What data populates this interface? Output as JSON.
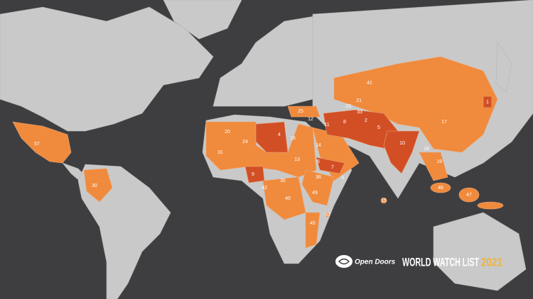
{
  "map": {
    "labels": [
      "57",
      "30",
      "1",
      "41",
      "21",
      "17",
      "11",
      "8",
      "2",
      "5",
      "10",
      "4",
      "24",
      "31",
      "9",
      "16",
      "13",
      "12",
      "25",
      "14",
      "7",
      "6",
      "35",
      "40",
      "42",
      "49",
      "36",
      "3",
      "45",
      "18",
      "19",
      "47",
      "46",
      "15",
      "50",
      "20",
      "23",
      "33"
    ]
  },
  "brand": {
    "org": "Open Doors",
    "title": "WORLD WATCH LIST",
    "year": "2021"
  }
}
